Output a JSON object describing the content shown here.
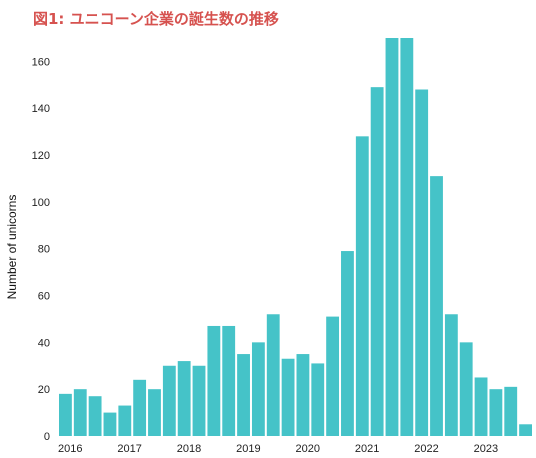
{
  "chart_data": {
    "type": "bar",
    "title": "図1: ユニコーン企業の誕生数の推移",
    "ylabel": "Number of unicorns",
    "xlabel": "",
    "ylim": [
      0,
      170
    ],
    "yticks": [
      0,
      20,
      40,
      60,
      80,
      100,
      120,
      140,
      160
    ],
    "xticks": [
      "2016",
      "2017",
      "2018",
      "2019",
      "2020",
      "2021",
      "2022",
      "2023"
    ],
    "bar_unit": "quarter",
    "categories": [
      "2016 Q1",
      "2016 Q2",
      "2016 Q3",
      "2016 Q4",
      "2017 Q1",
      "2017 Q2",
      "2017 Q3",
      "2017 Q4",
      "2018 Q1",
      "2018 Q2",
      "2018 Q3",
      "2018 Q4",
      "2019 Q1",
      "2019 Q2",
      "2019 Q3",
      "2019 Q4",
      "2020 Q1",
      "2020 Q2",
      "2020 Q3",
      "2020 Q4",
      "2021 Q1",
      "2021 Q2",
      "2021 Q3",
      "2021 Q4",
      "2022 Q1",
      "2022 Q2",
      "2022 Q3",
      "2022 Q4",
      "2023 Q1",
      "2023 Q2",
      "2023 Q3",
      "2023 Q4"
    ],
    "values": [
      18,
      20,
      17,
      10,
      13,
      24,
      20,
      30,
      32,
      30,
      47,
      47,
      35,
      40,
      52,
      33,
      35,
      31,
      51,
      79,
      128,
      149,
      170,
      170,
      148,
      111,
      52,
      40,
      25,
      20,
      21,
      5
    ],
    "bar_color": "#45c3c8",
    "grid": false,
    "legend": "none"
  }
}
